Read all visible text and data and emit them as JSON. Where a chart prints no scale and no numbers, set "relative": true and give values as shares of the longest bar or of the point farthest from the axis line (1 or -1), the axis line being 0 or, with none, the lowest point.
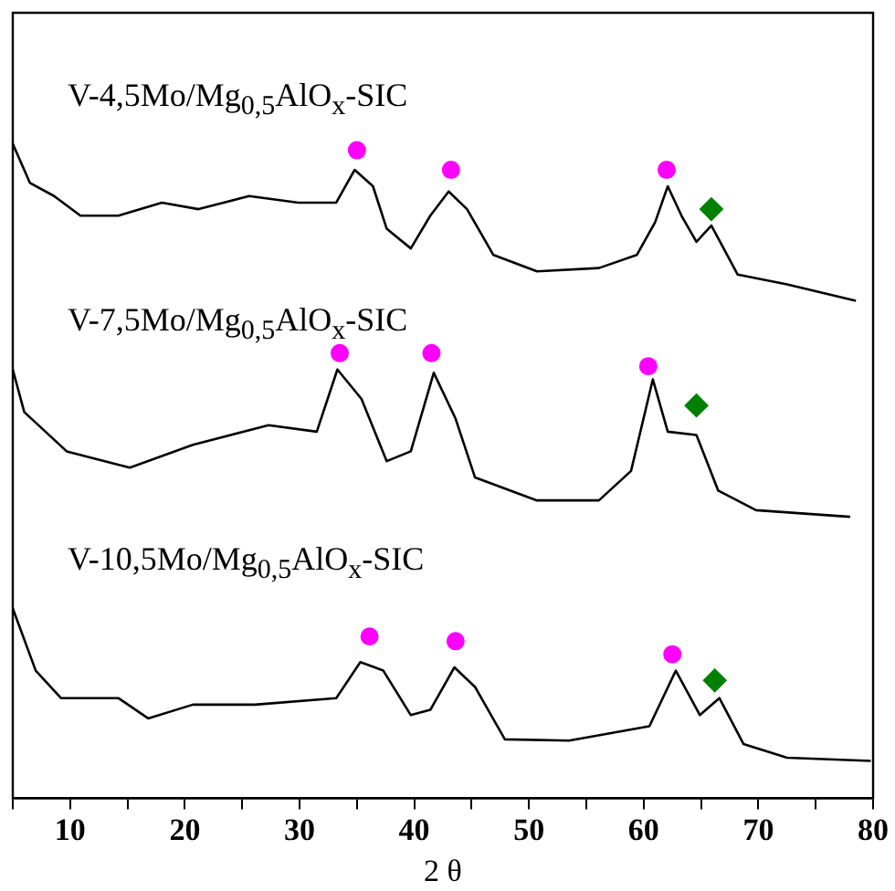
{
  "chart_data": {
    "type": "line",
    "relative": true,
    "xlabel": "2 θ",
    "xlim": [
      5,
      80
    ],
    "xticks": [
      {
        "value": 5,
        "label": null
      },
      10,
      {
        "value": 15,
        "label": null
      },
      20,
      {
        "value": 25,
        "label": null
      },
      30,
      {
        "value": 35,
        "label": null
      },
      40,
      {
        "value": 45,
        "label": null
      },
      50,
      {
        "value": 55,
        "label": null
      },
      60,
      {
        "value": 65,
        "label": null
      },
      70,
      {
        "value": 75,
        "label": null
      },
      80
    ],
    "legend": false,
    "marker": "none",
    "series": [
      {
        "name": "V-4,5Mo/Mg$_{0,5}$AlO$_{x}$-SIC",
        "color": "#000000",
        "x": [
          5,
          6.5,
          8.6,
          10.9,
          14.2,
          18,
          21.2,
          25.6,
          29.9,
          33.2,
          34.8,
          36.4,
          37.6,
          39.7,
          41.4,
          43.0,
          44.6,
          46.9,
          50.7,
          56.1,
          59.4,
          61.0,
          62.1,
          63.3,
          64.6,
          65.9,
          68.2,
          72.5,
          78.5
        ],
        "values": [
          1.0,
          0.94,
          0.92,
          0.89,
          0.89,
          0.91,
          0.9,
          0.92,
          0.91,
          0.91,
          0.96,
          0.935,
          0.87,
          0.84,
          0.89,
          0.927,
          0.9,
          0.83,
          0.805,
          0.81,
          0.83,
          0.88,
          0.935,
          0.89,
          0.85,
          0.875,
          0.8,
          0.785,
          0.76
        ]
      },
      {
        "name": "V-7,5Mo/Mg$_{0,5}$AlO$_{x}$-SIC",
        "color": "#000000",
        "x": [
          5,
          6,
          9.7,
          15.2,
          20.7,
          27.3,
          31.5,
          33.3,
          35.4,
          37.6,
          39.7,
          41.7,
          43.6,
          45.3,
          50.7,
          56.1,
          58.9,
          60.8,
          62.1,
          64.6,
          66.5,
          69.8,
          78.0
        ],
        "values": [
          0.655,
          0.59,
          0.53,
          0.505,
          0.54,
          0.57,
          0.56,
          0.655,
          0.61,
          0.515,
          0.53,
          0.65,
          0.58,
          0.49,
          0.455,
          0.455,
          0.5,
          0.64,
          0.56,
          0.555,
          0.47,
          0.44,
          0.43
        ]
      },
      {
        "name": "V-10,5Mo/Mg$_{0,5}$AlO$_{x}$-SIC",
        "color": "#000000",
        "x": [
          5,
          7,
          9.2,
          14.2,
          16.8,
          20.7,
          26.1,
          33.2,
          35.3,
          37.3,
          39.7,
          41.4,
          43.5,
          45.3,
          47.9,
          53.5,
          60.5,
          62.8,
          64.9,
          66.6,
          68.7,
          72.5,
          79.8
        ],
        "values": [
          0.29,
          0.195,
          0.153,
          0.153,
          0.122,
          0.143,
          0.143,
          0.153,
          0.208,
          0.195,
          0.127,
          0.135,
          0.2,
          0.17,
          0.09,
          0.088,
          0.11,
          0.195,
          0.127,
          0.153,
          0.083,
          0.062,
          0.057
        ]
      },
      {
        "type": "scatter",
        "marker": "circle",
        "color": "#ff00ff",
        "x": [
          35.0,
          43.2,
          62.0,
          33.5,
          41.5,
          60.4,
          36.1,
          43.6,
          62.5
        ],
        "values": [
          0.99,
          0.96,
          0.96,
          0.68,
          0.68,
          0.66,
          0.247,
          0.24,
          0.22
        ]
      },
      {
        "type": "scatter",
        "marker": "diamond",
        "color": "#008000",
        "x": [
          65.9,
          64.6,
          66.2
        ],
        "values": [
          0.9,
          0.6,
          0.18
        ]
      }
    ]
  }
}
